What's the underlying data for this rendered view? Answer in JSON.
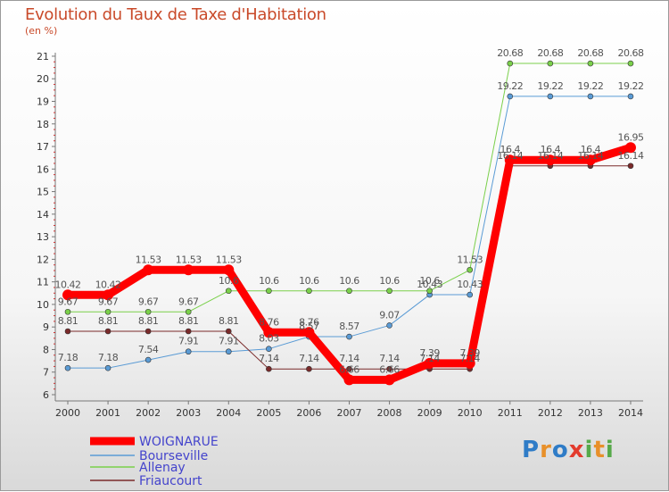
{
  "header": {
    "title": "Evolution du Taux de Taxe d'Habitation",
    "unit": "(en %)"
  },
  "logo": {
    "text": "Proxiti"
  },
  "chart_data": {
    "type": "line",
    "x": [
      2000,
      2001,
      2002,
      2003,
      2004,
      2005,
      2006,
      2007,
      2008,
      2009,
      2010,
      2011,
      2012,
      2013,
      2014
    ],
    "ylim": [
      6,
      21
    ],
    "yticks": [
      6,
      7,
      8,
      9,
      10,
      11,
      12,
      13,
      14,
      15,
      16,
      17,
      18,
      19,
      20,
      21
    ],
    "grid": false,
    "legend": "bottom-left",
    "series": [
      {
        "name": "WOIGNARUE",
        "color": "#ff0000",
        "width": 9,
        "marker": 6,
        "values": [
          10.42,
          10.42,
          11.53,
          11.53,
          11.53,
          8.76,
          8.76,
          6.66,
          6.66,
          7.39,
          7.39,
          16.4,
          16.4,
          16.4,
          16.95
        ]
      },
      {
        "name": "Bourseville",
        "color": "#5a9bd5",
        "width": 1,
        "marker": 3,
        "values": [
          7.18,
          7.18,
          7.54,
          7.91,
          7.91,
          8.03,
          8.57,
          8.57,
          9.07,
          10.43,
          10.43,
          19.22,
          19.22,
          19.22,
          19.22
        ]
      },
      {
        "name": "Allenay",
        "color": "#7ad04a",
        "width": 1,
        "marker": 3,
        "values": [
          9.67,
          9.67,
          9.67,
          9.67,
          10.6,
          10.6,
          10.6,
          10.6,
          10.6,
          10.6,
          11.53,
          20.68,
          20.68,
          20.68,
          20.68
        ]
      },
      {
        "name": "Friaucourt",
        "color": "#7a2a2a",
        "width": 1,
        "marker": 3,
        "values": [
          8.81,
          8.81,
          8.81,
          8.81,
          8.81,
          7.14,
          7.14,
          7.14,
          7.14,
          7.14,
          7.14,
          16.14,
          16.14,
          16.14,
          16.14
        ]
      }
    ]
  }
}
